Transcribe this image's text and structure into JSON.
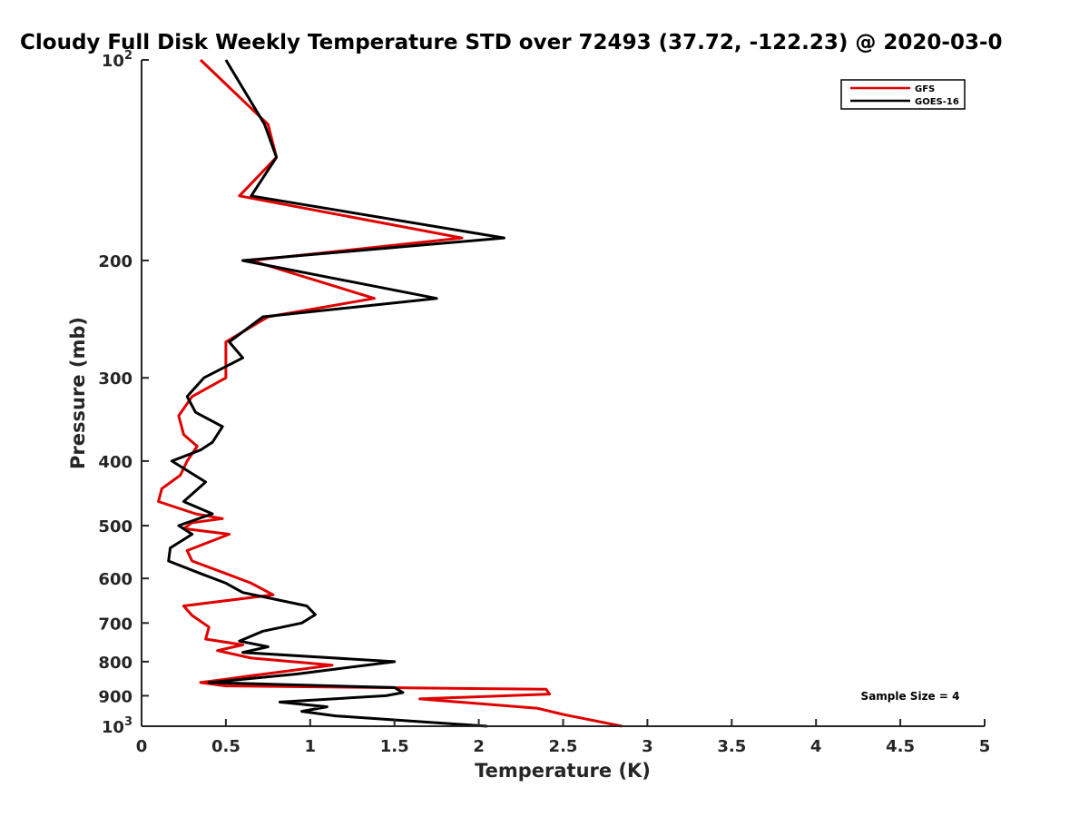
{
  "chart_data": {
    "type": "line",
    "title": "Cloudy Full Disk Weekly Temperature STD over 72493 (37.72, -122.23) @ 2020-03-0",
    "xlabel": "Temperature (K)",
    "ylabel": "Pressure (mb)",
    "xlim": [
      0,
      5
    ],
    "ylim": [
      100,
      1000
    ],
    "y_scale": "log",
    "y_reversed": true,
    "grid": false,
    "legend_position": "top-right",
    "x_ticks": [
      0,
      0.5,
      1,
      1.5,
      2,
      2.5,
      3,
      3.5,
      4,
      4.5,
      5
    ],
    "x_tick_labels": [
      "0",
      "0.5",
      "1",
      "1.5",
      "2",
      "2.5",
      "3",
      "3.5",
      "4",
      "4.5",
      "5"
    ],
    "y_ticks": [
      100,
      200,
      300,
      400,
      500,
      600,
      700,
      800,
      900,
      1000
    ],
    "y_tick_labels": [
      "10^2",
      "200",
      "300",
      "400",
      "500",
      "600",
      "700",
      "800",
      "900",
      "10^3"
    ],
    "annotation": "Sample Size = 4",
    "series": [
      {
        "name": "GFS",
        "color": "#e00000",
        "points": [
          [
            0.35,
            100
          ],
          [
            0.75,
            125
          ],
          [
            0.8,
            140
          ],
          [
            0.58,
            160
          ],
          [
            1.9,
            185
          ],
          [
            0.65,
            200
          ],
          [
            1.38,
            228
          ],
          [
            0.75,
            243
          ],
          [
            0.5,
            265
          ],
          [
            0.5,
            300
          ],
          [
            0.3,
            320
          ],
          [
            0.22,
            342
          ],
          [
            0.25,
            365
          ],
          [
            0.33,
            380
          ],
          [
            0.27,
            400
          ],
          [
            0.23,
            420
          ],
          [
            0.12,
            440
          ],
          [
            0.1,
            460
          ],
          [
            0.32,
            480
          ],
          [
            0.48,
            488
          ],
          [
            0.3,
            495
          ],
          [
            0.25,
            505
          ],
          [
            0.52,
            515
          ],
          [
            0.27,
            545
          ],
          [
            0.3,
            565
          ],
          [
            0.5,
            590
          ],
          [
            0.65,
            610
          ],
          [
            0.78,
            635
          ],
          [
            0.25,
            660
          ],
          [
            0.3,
            682
          ],
          [
            0.4,
            710
          ],
          [
            0.38,
            740
          ],
          [
            0.6,
            755
          ],
          [
            0.45,
            770
          ],
          [
            0.65,
            790
          ],
          [
            1.13,
            810
          ],
          [
            0.65,
            840
          ],
          [
            0.35,
            860
          ],
          [
            0.5,
            870
          ],
          [
            2.4,
            880
          ],
          [
            2.42,
            895
          ],
          [
            1.65,
            910
          ],
          [
            2.35,
            940
          ],
          [
            2.5,
            960
          ],
          [
            2.85,
            1000
          ]
        ]
      },
      {
        "name": "GOES-16",
        "color": "#000000",
        "points": [
          [
            0.5,
            100
          ],
          [
            0.73,
            125
          ],
          [
            0.8,
            140
          ],
          [
            0.65,
            160
          ],
          [
            2.15,
            185
          ],
          [
            0.6,
            200
          ],
          [
            1.75,
            228
          ],
          [
            0.72,
            243
          ],
          [
            0.52,
            265
          ],
          [
            0.6,
            280
          ],
          [
            0.37,
            300
          ],
          [
            0.27,
            320
          ],
          [
            0.32,
            338
          ],
          [
            0.48,
            355
          ],
          [
            0.42,
            375
          ],
          [
            0.35,
            385
          ],
          [
            0.18,
            400
          ],
          [
            0.38,
            430
          ],
          [
            0.25,
            460
          ],
          [
            0.42,
            480
          ],
          [
            0.22,
            500
          ],
          [
            0.3,
            515
          ],
          [
            0.17,
            540
          ],
          [
            0.16,
            565
          ],
          [
            0.35,
            590
          ],
          [
            0.5,
            610
          ],
          [
            0.6,
            630
          ],
          [
            0.98,
            660
          ],
          [
            1.03,
            680
          ],
          [
            0.95,
            700
          ],
          [
            0.72,
            720
          ],
          [
            0.58,
            745
          ],
          [
            0.75,
            760
          ],
          [
            0.6,
            775
          ],
          [
            1.5,
            800
          ],
          [
            0.92,
            835
          ],
          [
            0.4,
            860
          ],
          [
            1.5,
            875
          ],
          [
            1.55,
            890
          ],
          [
            1.45,
            900
          ],
          [
            0.82,
            920
          ],
          [
            1.1,
            935
          ],
          [
            0.95,
            950
          ],
          [
            1.15,
            965
          ],
          [
            2.05,
            1000
          ]
        ]
      }
    ]
  }
}
